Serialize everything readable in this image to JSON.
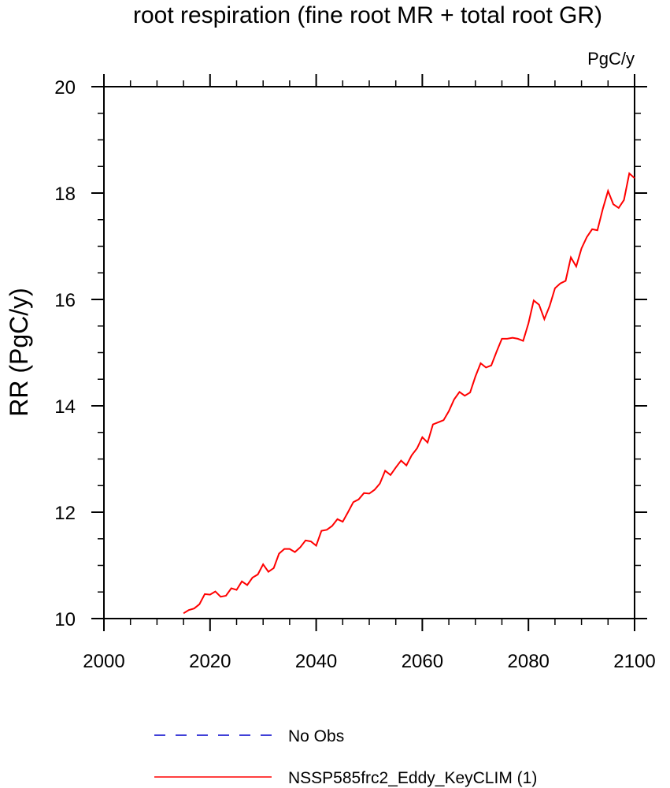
{
  "chart_data": {
    "type": "line",
    "title": "root respiration (fine root MR + total root GR)",
    "units_label": "PgC/y",
    "ylabel": "RR  (PgC/y)",
    "xlabel": "",
    "xlim": [
      2000,
      2100
    ],
    "ylim": [
      10,
      20
    ],
    "x_major_ticks": [
      2000,
      2020,
      2040,
      2060,
      2080,
      2100
    ],
    "x_tick_labels": [
      "2000",
      "2020",
      "2040",
      "2060",
      "2080",
      "2100"
    ],
    "y_major_ticks": [
      10,
      12,
      14,
      16,
      18,
      20
    ],
    "y_tick_labels": [
      "10",
      "12",
      "14",
      "16",
      "18",
      "20"
    ],
    "grid": false,
    "legend_position": "bottom",
    "series": [
      {
        "name": "No Obs",
        "color": "#0000cc",
        "style": "dashed",
        "x": [],
        "y": []
      },
      {
        "name": "NSSP585frc2_Eddy_KeyCLIM (1)",
        "color": "#ff0000",
        "style": "solid",
        "x": [
          2015,
          2016,
          2017,
          2018,
          2019,
          2020,
          2021,
          2022,
          2023,
          2024,
          2025,
          2026,
          2027,
          2028,
          2029,
          2030,
          2031,
          2032,
          2033,
          2034,
          2035,
          2036,
          2037,
          2038,
          2039,
          2040,
          2041,
          2042,
          2043,
          2044,
          2045,
          2046,
          2047,
          2048,
          2049,
          2050,
          2051,
          2052,
          2053,
          2054,
          2055,
          2056,
          2057,
          2058,
          2059,
          2060,
          2061,
          2062,
          2063,
          2064,
          2065,
          2066,
          2067,
          2068,
          2069,
          2070,
          2071,
          2072,
          2073,
          2074,
          2075,
          2076,
          2077,
          2078,
          2079,
          2080,
          2081,
          2082,
          2083,
          2084,
          2085,
          2086,
          2087,
          2088,
          2089,
          2090,
          2091,
          2092,
          2093,
          2094,
          2095,
          2096,
          2097,
          2098,
          2099,
          2100
        ],
        "y": [
          10.1,
          10.16,
          10.19,
          10.27,
          10.46,
          10.45,
          10.51,
          10.41,
          10.43,
          10.57,
          10.54,
          10.7,
          10.63,
          10.77,
          10.83,
          11.02,
          10.88,
          10.95,
          11.22,
          11.31,
          11.31,
          11.25,
          11.34,
          11.47,
          11.45,
          11.37,
          11.65,
          11.67,
          11.74,
          11.87,
          11.82,
          12.0,
          12.19,
          12.24,
          12.36,
          12.35,
          12.42,
          12.54,
          12.78,
          12.7,
          12.84,
          12.97,
          12.88,
          13.07,
          13.2,
          13.41,
          13.31,
          13.65,
          13.69,
          13.73,
          13.9,
          14.12,
          14.26,
          14.19,
          14.25,
          14.55,
          14.8,
          14.72,
          14.76,
          15.02,
          15.26,
          15.26,
          15.28,
          15.26,
          15.22,
          15.55,
          15.98,
          15.9,
          15.63,
          15.88,
          16.21,
          16.3,
          16.35,
          16.79,
          16.62,
          16.96,
          17.17,
          17.32,
          17.3,
          17.7,
          18.04,
          17.79,
          17.72,
          17.87,
          18.37,
          18.28
        ]
      }
    ]
  }
}
